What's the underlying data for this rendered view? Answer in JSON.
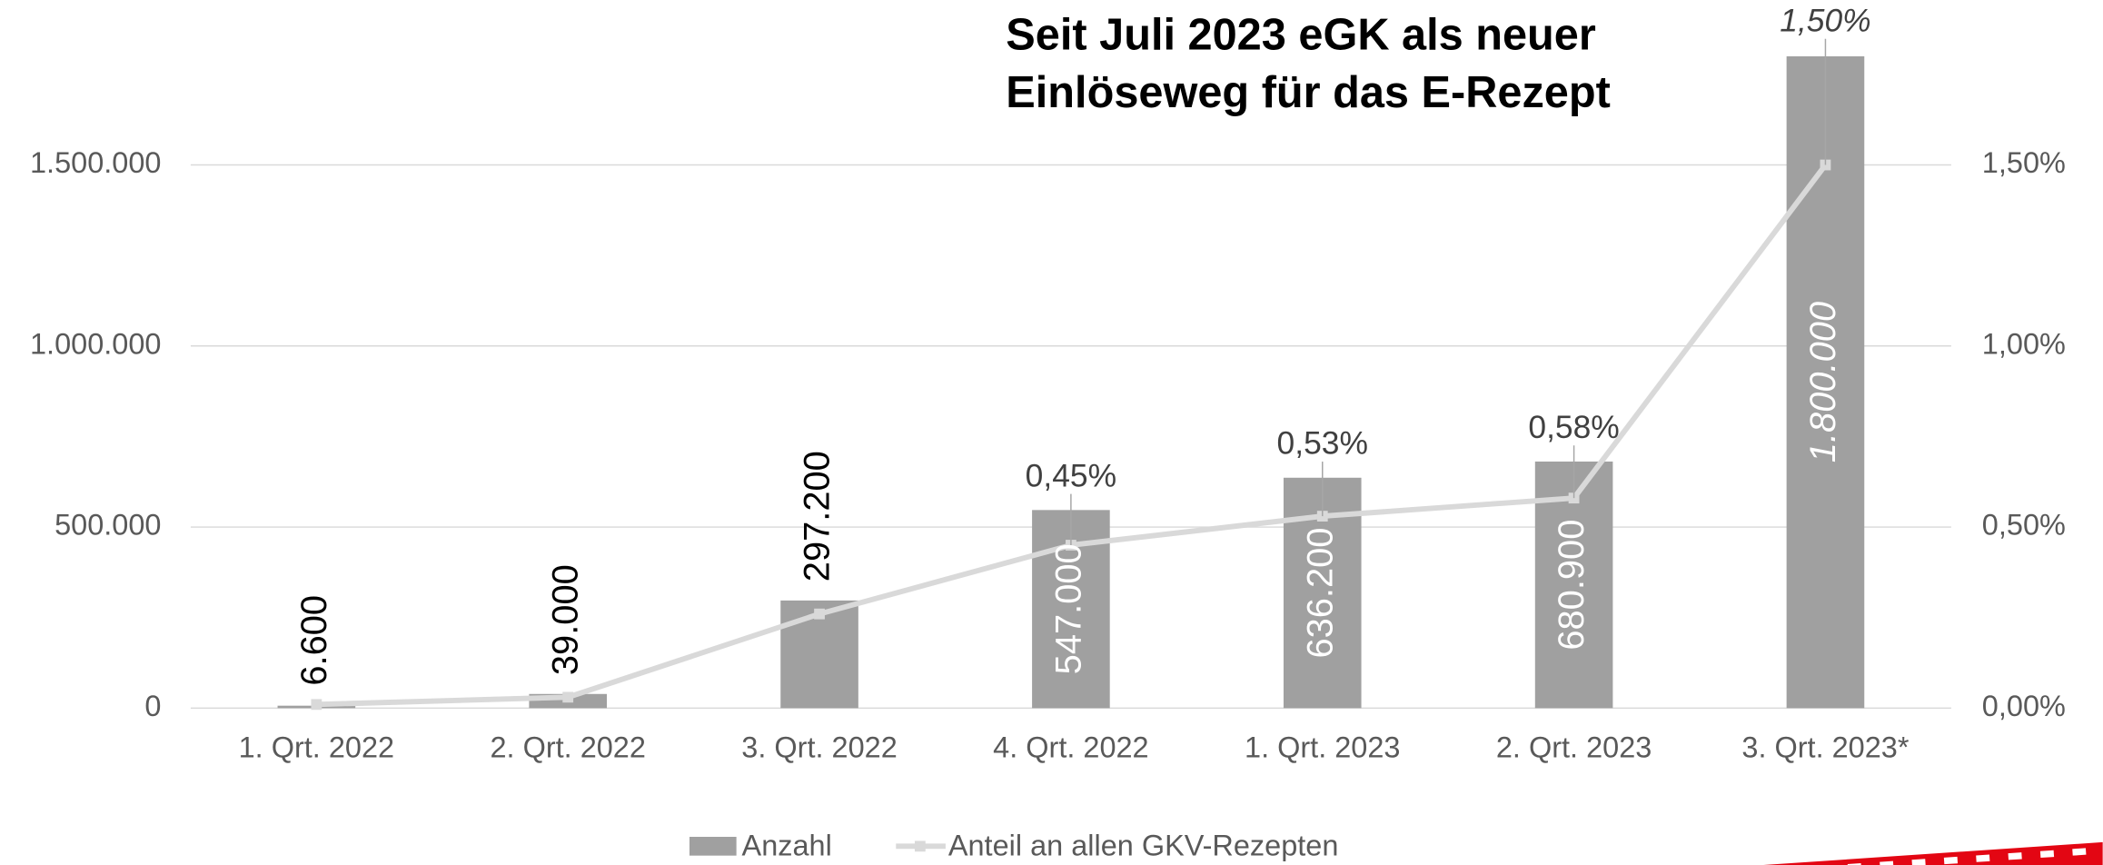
{
  "chart_data": {
    "type": "bar",
    "title": [
      "Seit Juli 2023 eGK als neuer",
      "Einlöseweg für das E-Rezept"
    ],
    "categories": [
      "1. Qrt. 2022",
      "2. Qrt. 2022",
      "3. Qrt. 2022",
      "4. Qrt. 2022",
      "1. Qrt. 2023",
      "2. Qrt. 2023",
      "3. Qrt. 2023*"
    ],
    "series": [
      {
        "name": "Anzahl",
        "type": "bar",
        "color": "#a0a0a0",
        "values": [
          6600,
          39000,
          297200,
          547000,
          636200,
          680900,
          1800000
        ],
        "value_labels": [
          "6.600",
          "39.000",
          "297.200",
          "547.000",
          "636.200",
          "680.900",
          "1.800.000"
        ]
      },
      {
        "name": "Anteil an allen GKV-Rezepten",
        "type": "line",
        "color": "#d9d9d9",
        "axis": "y2",
        "values": [
          0.01,
          0.03,
          0.26,
          0.45,
          0.53,
          0.58,
          1.5
        ],
        "value_labels": [
          null,
          null,
          null,
          "0,45%",
          "0,53%",
          "0,58%",
          "1,50%"
        ]
      }
    ],
    "ylim": [
      0,
      1800000
    ],
    "yticks": [
      0,
      {
        "value": 500000,
        "label": "500.000"
      },
      {
        "value": 1000000,
        "label": "1.000.000"
      },
      {
        "value": 1500000,
        "label": "1.500.000"
      }
    ],
    "y2lim": [
      0,
      1.8
    ],
    "y2ticks": [
      {
        "value": 0,
        "label": "0,00%"
      },
      {
        "value": 0.5,
        "label": "0,50%"
      },
      {
        "value": 1,
        "label": "1,00%"
      },
      {
        "value": 1.5,
        "label": "1,50%"
      }
    ],
    "grid": true,
    "legend": "bottom"
  }
}
